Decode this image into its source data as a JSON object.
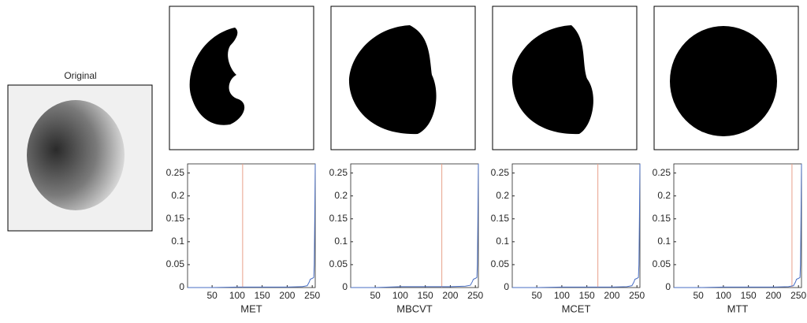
{
  "image_title": "Original",
  "chart_data": [
    {
      "type": "line",
      "xlabel": "MET",
      "xlim": [
        1,
        256
      ],
      "xticks": [
        50,
        100,
        150,
        200,
        250
      ],
      "ylim": [
        0,
        0.27
      ],
      "yticks": [
        0,
        0.05,
        0.1,
        0.15,
        0.2,
        0.25
      ],
      "series": [
        {
          "name": "histogram",
          "color": "#4a6fc4",
          "x": [
            1,
            50,
            100,
            150,
            200,
            230,
            240,
            244,
            246,
            250,
            253,
            254,
            255,
            256
          ],
          "values": [
            0,
            0,
            0.001,
            0.001,
            0.001,
            0.002,
            0.004,
            0.012,
            0.018,
            0.02,
            0.022,
            0.05,
            0.15,
            0.27
          ]
        }
      ],
      "threshold": 111,
      "threshold_color": "#e8a08a"
    },
    {
      "type": "line",
      "xlabel": "MBCVT",
      "xlim": [
        1,
        256
      ],
      "xticks": [
        50,
        100,
        150,
        200,
        250
      ],
      "ylim": [
        0,
        0.27
      ],
      "yticks": [
        0,
        0.05,
        0.1,
        0.15,
        0.2,
        0.25
      ],
      "series": [
        {
          "name": "histogram",
          "color": "#4a6fc4",
          "x": [
            1,
            50,
            100,
            150,
            200,
            230,
            240,
            244,
            246,
            250,
            253,
            254,
            255,
            256
          ],
          "values": [
            0,
            0,
            0.002,
            0.002,
            0.002,
            0.003,
            0.005,
            0.013,
            0.018,
            0.02,
            0.022,
            0.05,
            0.15,
            0.27
          ]
        }
      ],
      "threshold": 183,
      "threshold_color": "#e8a08a"
    },
    {
      "type": "line",
      "xlabel": "MCET",
      "xlim": [
        1,
        256
      ],
      "xticks": [
        50,
        100,
        150,
        200,
        250
      ],
      "ylim": [
        0,
        0.27
      ],
      "yticks": [
        0,
        0.05,
        0.1,
        0.15,
        0.2,
        0.25
      ],
      "series": [
        {
          "name": "histogram",
          "color": "#4a6fc4",
          "x": [
            1,
            50,
            100,
            150,
            200,
            230,
            240,
            244,
            246,
            250,
            253,
            254,
            255,
            256
          ],
          "values": [
            0,
            0,
            0.001,
            0.001,
            0.001,
            0.002,
            0.004,
            0.012,
            0.018,
            0.02,
            0.022,
            0.05,
            0.15,
            0.27
          ]
        }
      ],
      "threshold": 172,
      "threshold_color": "#e8a08a"
    },
    {
      "type": "line",
      "xlabel": "MTT",
      "xlim": [
        1,
        256
      ],
      "xticks": [
        50,
        100,
        150,
        200,
        250
      ],
      "ylim": [
        0,
        0.27
      ],
      "yticks": [
        0,
        0.05,
        0.1,
        0.15,
        0.2,
        0.25
      ],
      "series": [
        {
          "name": "histogram",
          "color": "#4a6fc4",
          "x": [
            1,
            50,
            100,
            150,
            200,
            230,
            240,
            244,
            246,
            250,
            253,
            254,
            255,
            256
          ],
          "values": [
            0,
            0,
            0.001,
            0.001,
            0.001,
            0.002,
            0.004,
            0.012,
            0.018,
            0.02,
            0.022,
            0.05,
            0.15,
            0.27
          ]
        }
      ],
      "threshold": 237,
      "threshold_color": "#e8a08a"
    }
  ]
}
